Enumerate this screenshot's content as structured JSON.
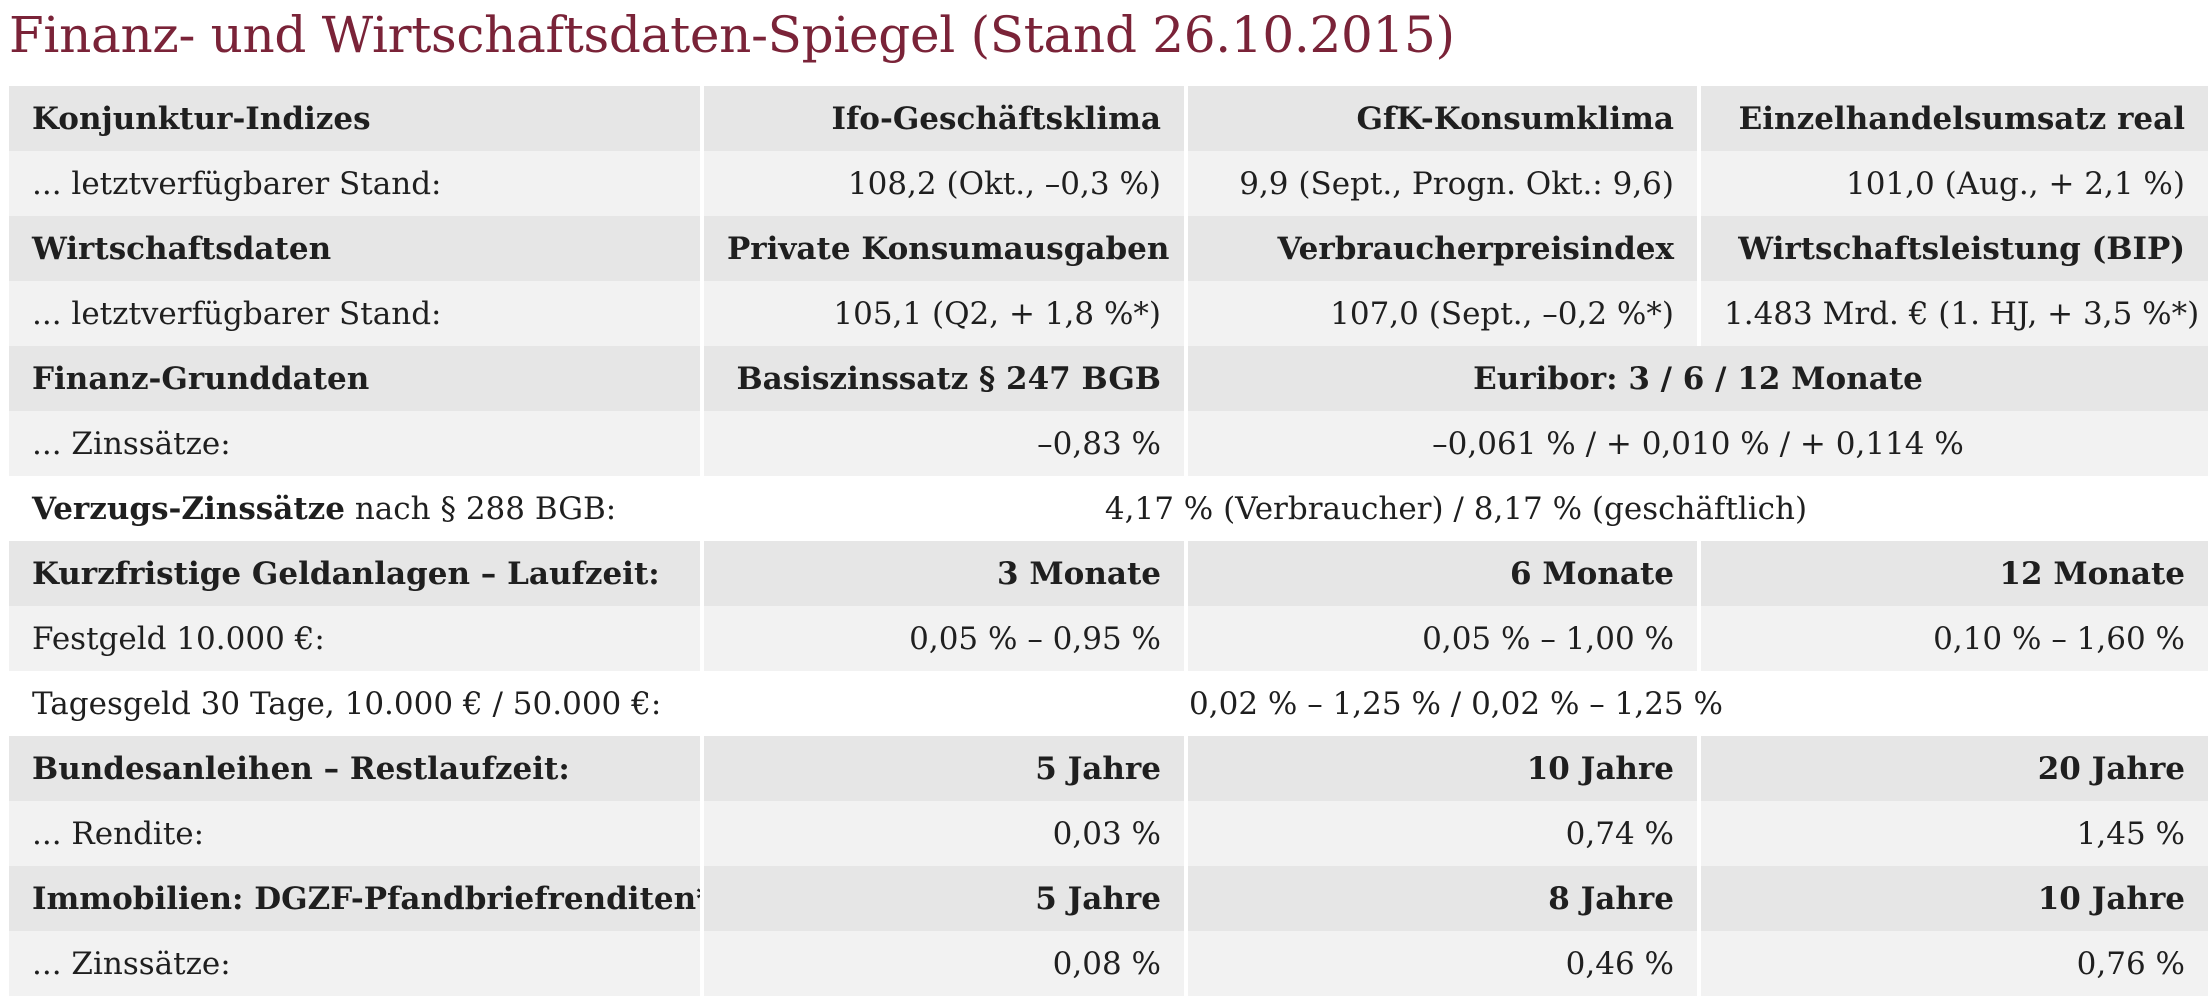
{
  "title": "Finanz- und Wirtschaftsdaten-Spiegel (Stand 26.10.2015)",
  "rows": {
    "konjunktur_header": {
      "label": "Konjunktur-Indizes",
      "c1": "Ifo-Geschäftsklima",
      "c2": "GfK-Konsumklima",
      "c3": "Einzelhandelsumsatz real"
    },
    "konjunktur_values": {
      "label": "... letztverfügbarer Stand:",
      "c1": "108,2 (Okt., –0,3 %)",
      "c2": "9,9 (Sept., Progn. Okt.: 9,6)",
      "c3": "101,0 (Aug., + 2,1 %)"
    },
    "wirtschaft_header": {
      "label": "Wirtschaftsdaten",
      "c1": "Private Konsumausgaben",
      "c2": "Verbraucherpreisindex",
      "c3": "Wirtschaftsleistung (BIP)"
    },
    "wirtschaft_values": {
      "label": "... letztverfügbarer Stand:",
      "c1": "105,1 (Q2, + 1,8 %*)",
      "c2": "107,0 (Sept., –0,2 %*)",
      "c3": "1.483 Mrd. € (1. HJ, + 3,5 %*)"
    },
    "finanz_header": {
      "label": "Finanz-Grunddaten",
      "c1": "Basiszinssatz § 247 BGB",
      "c23": "Euribor: 3 / 6 / 12 Monate"
    },
    "finanz_values": {
      "label": "... Zinssätze:",
      "c1": "–0,83 %",
      "c23": "–0,061 % / + 0,010 % / + 0,114 %"
    },
    "verzug": {
      "label_bold": "Verzugs-Zinssätze",
      "label_rest": " nach § 288 BGB:",
      "value": "4,17 % (Verbraucher) / 8,17 % (geschäftlich)"
    },
    "geld_header": {
      "label": "Kurzfristige Geldanlagen – Laufzeit:",
      "c1": "3 Monate",
      "c2": "6 Monate",
      "c3": "12 Monate"
    },
    "festgeld": {
      "label": "Festgeld 10.000 €:",
      "c1": "0,05 % – 0,95 %",
      "c2": "0,05 % – 1,00 %",
      "c3": "0,10 % – 1,60 %"
    },
    "tagesgeld": {
      "label": "Tagesgeld 30 Tage, 10.000 € / 50.000 €:",
      "value": "0,02 % – 1,25 % / 0,02 % – 1,25 %"
    },
    "bund_header": {
      "label": "Bundesanleihen – Restlaufzeit:",
      "c1": "5 Jahre",
      "c2": "10 Jahre",
      "c3": "20 Jahre"
    },
    "bund_values": {
      "label": "... Rendite:",
      "c1": "0,03 %",
      "c2": "0,74 %",
      "c3": "1,45 %"
    },
    "immo_header": {
      "label": "Immobilien: DGZF-Pfandbriefrenditen**",
      "c1": "5 Jahre",
      "c2": "8 Jahre",
      "c3": "10 Jahre"
    },
    "immo_values": {
      "label": "... Zinssätze:",
      "c1": "0,08 %",
      "c2": "0,46 %",
      "c3": "0,76 %"
    }
  }
}
